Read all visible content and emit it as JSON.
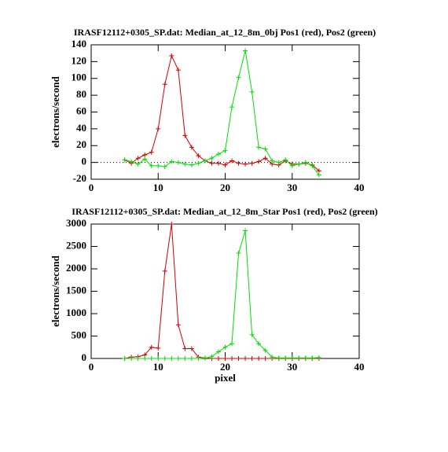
{
  "chart_data": [
    {
      "type": "line",
      "title": "IRASF12112+0305_SP.dat: Median_at_12_8m_0bj Pos1 (red), Pos2 (green)",
      "y_label": "electrons/second",
      "x": [
        5,
        6,
        7,
        8,
        9,
        10,
        11,
        12,
        13,
        14,
        15,
        16,
        17,
        18,
        19,
        20,
        21,
        22,
        23,
        24,
        25,
        26,
        27,
        28,
        29,
        30,
        31,
        32,
        33,
        34
      ],
      "series": [
        {
          "name": "Pos1",
          "color": "#d00000",
          "values": [
            3,
            -1,
            5,
            9,
            12,
            40,
            93,
            127,
            110,
            32,
            18,
            8,
            2,
            -1,
            -1,
            -3,
            2,
            -1,
            -2,
            -1,
            1,
            5,
            -2,
            -3,
            2,
            -2,
            -2,
            -1,
            -3,
            -10
          ]
        },
        {
          "name": "Pos2",
          "color": "#00e000",
          "values": [
            3,
            1,
            -2,
            4,
            -4,
            -4,
            -5,
            1,
            0,
            -2,
            -3,
            -1,
            2,
            5,
            10,
            14,
            66,
            101,
            133,
            84,
            18,
            16,
            2,
            0,
            3,
            -4,
            -2,
            0,
            -4,
            -15
          ]
        }
      ],
      "xlim": [
        0,
        40
      ],
      "xticks": [
        0,
        10,
        20,
        30,
        40
      ],
      "ylim": [
        -20,
        140
      ],
      "yticks": [
        -20,
        0,
        20,
        40,
        60,
        80,
        100,
        120,
        140
      ],
      "zero_line": true
    },
    {
      "type": "line",
      "title": "IRASF12112+0305_SP.dat: Median_at_12_8m_Star Pos1 (red), Pos2 (green)",
      "y_label": "electrons/second",
      "x_label": "pixel",
      "x": [
        5,
        6,
        7,
        8,
        9,
        10,
        11,
        12,
        13,
        14,
        15,
        16,
        17,
        18,
        19,
        20,
        21,
        22,
        23,
        24,
        25,
        26,
        27,
        28,
        29,
        30,
        31,
        32,
        33,
        34
      ],
      "series": [
        {
          "name": "Pos1",
          "color": "#d00000",
          "values": [
            0,
            30,
            40,
            80,
            250,
            230,
            1950,
            3000,
            750,
            220,
            220,
            30,
            10,
            0,
            0,
            0,
            0,
            0,
            0,
            0,
            0,
            0,
            0,
            0,
            0,
            0,
            0,
            0,
            0,
            0
          ]
        },
        {
          "name": "Pos2",
          "color": "#00e000",
          "values": [
            0,
            0,
            0,
            0,
            0,
            0,
            0,
            0,
            0,
            0,
            0,
            0,
            10,
            40,
            150,
            250,
            330,
            2350,
            2850,
            530,
            330,
            180,
            30,
            10,
            10,
            10,
            10,
            10,
            10,
            20
          ]
        }
      ],
      "xlim": [
        0,
        40
      ],
      "xticks": [
        0,
        10,
        20,
        30,
        40
      ],
      "ylim": [
        0,
        3000
      ],
      "yticks": [
        0,
        500,
        1000,
        1500,
        2000,
        2500,
        3000
      ],
      "zero_line": false
    }
  ]
}
